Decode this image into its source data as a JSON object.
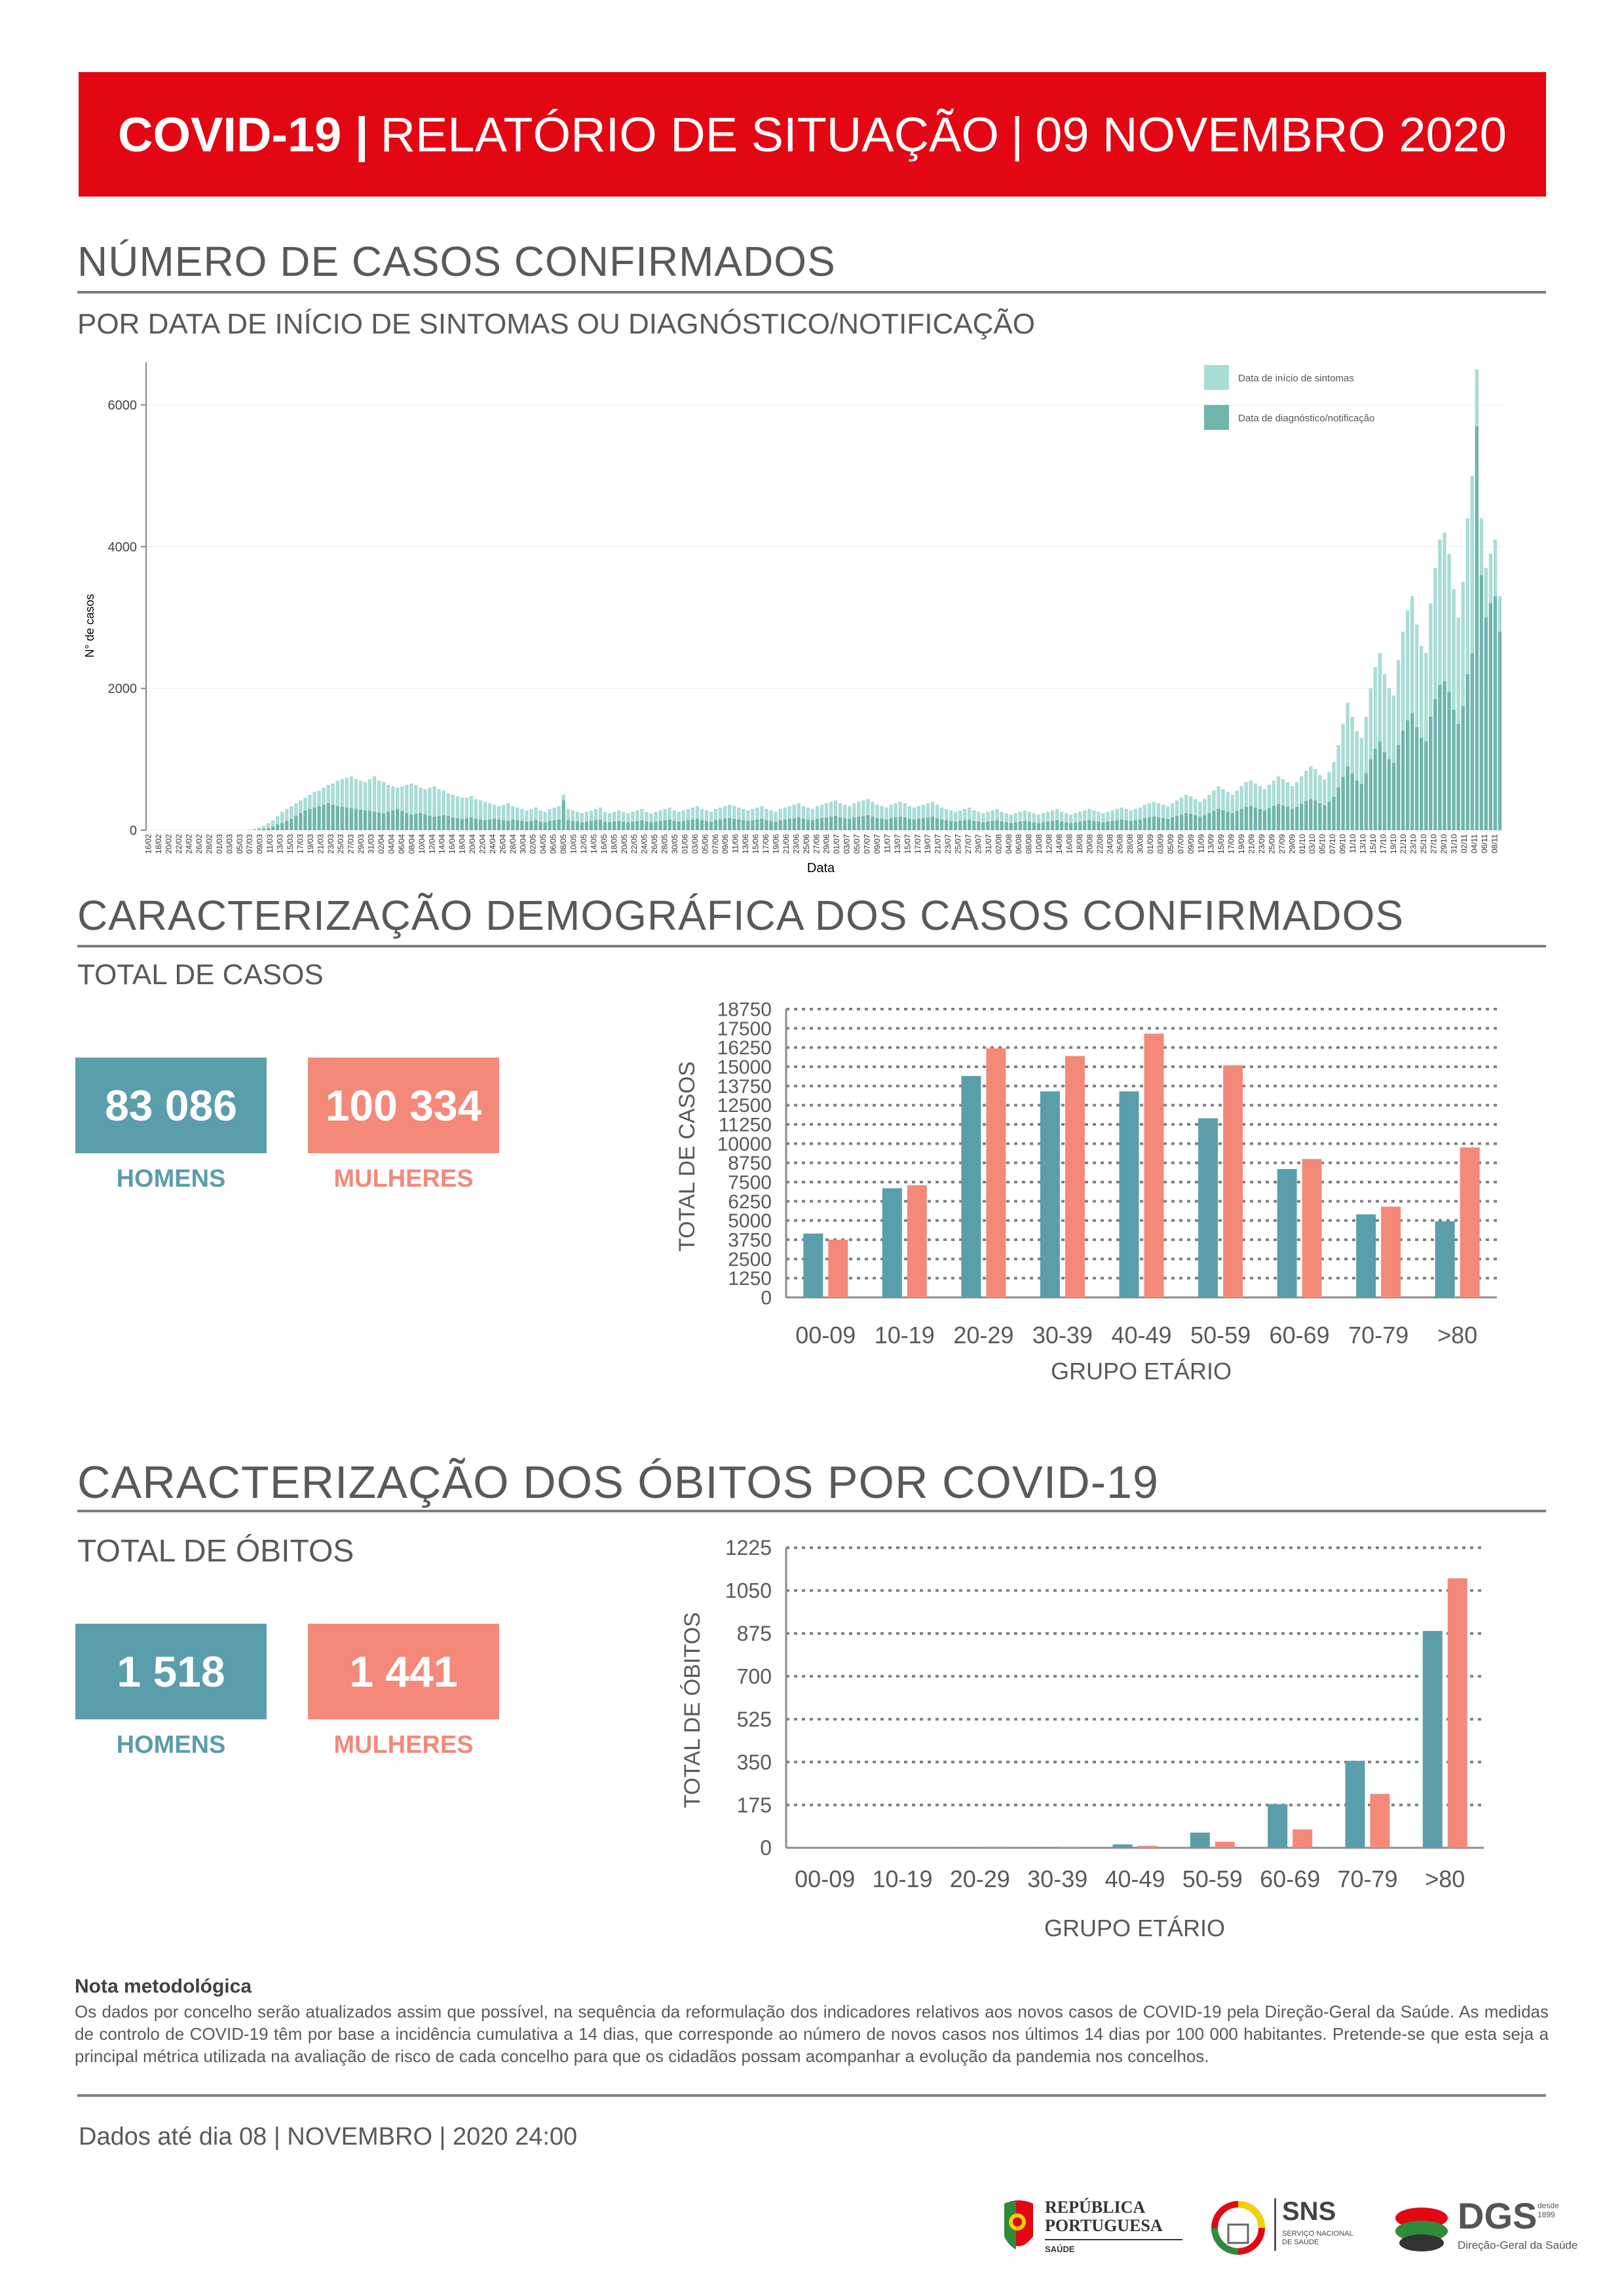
{
  "header": {
    "title_bold": "COVID-19 |",
    "title_rest": "RELATÓRIO DE SITUAÇÃO",
    "separator": "|",
    "date": "09 NOVEMBRO 2020"
  },
  "section1": {
    "title": "NÚMERO DE CASOS CONFIRMADOS",
    "subtitle": "POR DATA DE INÍCIO DE SINTOMAS OU DIAGNÓSTICO/NOTIFICAÇÃO"
  },
  "section2": {
    "title": "CARACTERIZAÇÃO DEMOGRÁFICA DOS CASOS CONFIRMADOS",
    "subtitle": "TOTAL DE CASOS",
    "men_value": "83 086",
    "men_label": "HOMENS",
    "women_value": "100 334",
    "women_label": "MULHERES"
  },
  "section3": {
    "title": "CARACTERIZAÇÃO DOS ÓBITOS POR COVID-19",
    "subtitle": "TOTAL DE ÓBITOS",
    "men_value": "1 518",
    "men_label": "HOMENS",
    "women_value": "1 441",
    "women_label": "MULHERES"
  },
  "note": {
    "title": "Nota metodológica",
    "text": "Os dados por concelho serão atualizados assim que possível, na sequência da reformulação dos indicadores relativos aos novos casos de COVID-19 pela Direção-Geral da Saúde. As medidas de controlo de COVID-19 têm por base a incidência cumulativa a 14 dias, que corresponde ao número de novos casos nos últimos 14 dias por 100 000 habitantes. Pretende-se que esta seja a principal métrica utilizada na avaliação de risco de cada concelho para que os cidadãos possam acompanhar a evolução da pandemia nos concelhos."
  },
  "footer": {
    "date_text": "Dados até dia 08 | NOVEMBRO | 2020 24:00",
    "logo1_line1": "REPÚBLICA",
    "logo1_line2": "PORTUGUESA",
    "logo1_line3": "SAÚDE",
    "logo2_main": "SNS",
    "logo2_sub": "SERVIÇO NACIONAL DE SAÚDE",
    "logo3_main": "DGS",
    "logo3_since": "desde 1899",
    "logo3_sub": "Direção-Geral da Saúde"
  },
  "colors": {
    "red": "#e30613",
    "men": "#5a9eac",
    "women": "#f4897a",
    "symptoms": "#a8ddd5",
    "notification": "#6fb5ad"
  },
  "chart_data": [
    {
      "type": "bar",
      "stacked": false,
      "xlabel": "Data",
      "ylabel": "N° de casos",
      "yticks": [
        0,
        2000,
        4000,
        6000
      ],
      "ylim": [
        0,
        6600
      ],
      "x_tick_labels": [
        "16/02",
        "18/02",
        "20/02",
        "22/02",
        "24/02",
        "26/02",
        "28/02",
        "01/03",
        "03/03",
        "05/03",
        "07/03",
        "09/03",
        "11/03",
        "13/03",
        "15/03",
        "17/03",
        "19/03",
        "21/03",
        "23/03",
        "25/03",
        "27/03",
        "29/03",
        "31/03",
        "02/04",
        "04/04",
        "06/04",
        "08/04",
        "10/04",
        "12/04",
        "14/04",
        "16/04",
        "18/04",
        "20/04",
        "22/04",
        "24/04",
        "26/04",
        "28/04",
        "30/04",
        "02/05",
        "04/05",
        "06/05",
        "08/05",
        "10/05",
        "12/05",
        "14/05",
        "16/05",
        "18/05",
        "20/05",
        "22/05",
        "24/05",
        "26/05",
        "28/05",
        "30/05",
        "01/06",
        "03/06",
        "05/06",
        "07/06",
        "09/06",
        "11/06",
        "13/06",
        "15/06",
        "17/06",
        "19/06",
        "21/06",
        "23/06",
        "25/06",
        "27/06",
        "29/06",
        "01/07",
        "03/07",
        "05/07",
        "07/07",
        "09/07",
        "11/07",
        "13/07",
        "15/07",
        "17/07",
        "19/07",
        "21/07",
        "23/07",
        "25/07",
        "27/07",
        "29/07",
        "31/07",
        "02/08",
        "04/08",
        "06/08",
        "08/08",
        "10/08",
        "12/08",
        "14/08",
        "16/08",
        "18/08",
        "20/08",
        "22/08",
        "24/08",
        "26/08",
        "28/08",
        "30/08",
        "01/09",
        "03/09",
        "05/09",
        "07/09",
        "09/09",
        "11/09",
        "13/09",
        "15/09",
        "17/09",
        "19/09",
        "21/09",
        "23/09",
        "25/09",
        "27/09",
        "29/09",
        "01/10",
        "03/10",
        "05/10",
        "07/10",
        "09/10",
        "11/10",
        "13/10",
        "15/10",
        "17/10",
        "19/10",
        "21/10",
        "23/10",
        "25/10",
        "27/10",
        "29/10",
        "31/10",
        "02/11",
        "04/11",
        "06/11",
        "08/11"
      ],
      "series": [
        {
          "name": "Data de início de sintomas",
          "color": "#a8ddd5",
          "values": [
            0,
            0,
            0,
            0,
            0,
            0,
            0,
            0,
            0,
            0,
            0,
            0,
            0,
            0,
            0,
            0,
            0,
            0,
            0,
            0,
            0,
            0,
            10,
            20,
            40,
            60,
            100,
            140,
            200,
            260,
            300,
            340,
            380,
            420,
            460,
            500,
            540,
            560,
            600,
            640,
            660,
            700,
            720,
            740,
            760,
            720,
            700,
            680,
            720,
            760,
            700,
            680,
            640,
            620,
            600,
            620,
            640,
            660,
            640,
            600,
            580,
            600,
            620,
            580,
            560,
            520,
            500,
            480,
            460,
            460,
            480,
            440,
            420,
            400,
            380,
            360,
            340,
            360,
            380,
            340,
            320,
            300,
            280,
            300,
            320,
            280,
            260,
            300,
            320,
            340,
            500,
            300,
            280,
            260,
            240,
            260,
            280,
            300,
            320,
            260,
            240,
            260,
            280,
            260,
            240,
            260,
            280,
            300,
            260,
            240,
            260,
            280,
            300,
            320,
            280,
            260,
            280,
            300,
            320,
            340,
            300,
            280,
            260,
            300,
            320,
            340,
            360,
            340,
            320,
            300,
            280,
            300,
            320,
            340,
            300,
            280,
            260,
            300,
            320,
            340,
            360,
            380,
            340,
            320,
            300,
            340,
            360,
            380,
            400,
            420,
            380,
            360,
            340,
            380,
            400,
            420,
            440,
            400,
            360,
            340,
            320,
            360,
            380,
            400,
            380,
            340,
            320,
            340,
            360,
            380,
            400,
            360,
            320,
            300,
            280,
            260,
            280,
            300,
            320,
            280,
            260,
            240,
            260,
            280,
            300,
            260,
            240,
            220,
            240,
            260,
            280,
            260,
            240,
            220,
            240,
            260,
            280,
            300,
            260,
            240,
            220,
            240,
            260,
            280,
            300,
            280,
            260,
            240,
            260,
            280,
            300,
            320,
            300,
            280,
            300,
            320,
            360,
            380,
            400,
            380,
            360,
            340,
            380,
            420,
            460,
            500,
            480,
            440,
            400,
            440,
            500,
            560,
            620,
            580,
            540,
            500,
            560,
            620,
            680,
            700,
            660,
            620,
            580,
            640,
            700,
            760,
            720,
            680,
            620,
            680,
            760,
            840,
            900,
            860,
            780,
            720,
            820,
            960,
            1200,
            1500,
            1800,
            1600,
            1400,
            1300,
            1600,
            2000,
            2300,
            2500,
            2200,
            2000,
            1900,
            2400,
            2800,
            3100,
            3300,
            2900,
            2600,
            2500,
            3200,
            3700,
            4100,
            4200,
            3900,
            3400,
            3000,
            3500,
            4400,
            5000,
            6500,
            4400,
            3700,
            3900,
            4100,
            3300
          ]
        },
        {
          "name": "Data de diagnóstico/notificação",
          "color": "#6fb5ad",
          "values": [
            0,
            0,
            0,
            0,
            0,
            0,
            0,
            0,
            0,
            0,
            0,
            0,
            0,
            0,
            0,
            0,
            0,
            0,
            0,
            0,
            0,
            0,
            0,
            5,
            10,
            20,
            30,
            50,
            80,
            100,
            130,
            160,
            200,
            240,
            280,
            300,
            320,
            340,
            360,
            380,
            360,
            340,
            330,
            320,
            310,
            300,
            290,
            280,
            270,
            260,
            250,
            240,
            260,
            280,
            300,
            270,
            240,
            220,
            230,
            240,
            220,
            200,
            190,
            200,
            210,
            200,
            180,
            170,
            160,
            170,
            180,
            160,
            150,
            140,
            150,
            160,
            150,
            140,
            130,
            150,
            140,
            130,
            120,
            130,
            140,
            120,
            110,
            130,
            140,
            150,
            420,
            140,
            130,
            120,
            110,
            120,
            130,
            140,
            150,
            120,
            110,
            120,
            130,
            120,
            110,
            120,
            130,
            140,
            120,
            110,
            120,
            130,
            140,
            150,
            130,
            120,
            130,
            140,
            150,
            160,
            140,
            130,
            120,
            140,
            150,
            160,
            170,
            160,
            150,
            140,
            130,
            140,
            150,
            160,
            140,
            130,
            120,
            140,
            150,
            160,
            170,
            180,
            160,
            150,
            140,
            160,
            170,
            180,
            190,
            200,
            180,
            170,
            160,
            180,
            190,
            200,
            210,
            190,
            170,
            160,
            150,
            170,
            180,
            190,
            180,
            160,
            150,
            160,
            170,
            180,
            190,
            170,
            150,
            140,
            130,
            120,
            130,
            140,
            150,
            130,
            120,
            110,
            120,
            130,
            140,
            120,
            110,
            100,
            110,
            120,
            130,
            120,
            110,
            100,
            110,
            120,
            130,
            140,
            120,
            110,
            100,
            110,
            120,
            130,
            140,
            130,
            120,
            110,
            120,
            130,
            140,
            150,
            140,
            130,
            140,
            150,
            170,
            180,
            190,
            180,
            170,
            160,
            180,
            200,
            220,
            240,
            230,
            210,
            190,
            210,
            240,
            270,
            300,
            280,
            260,
            240,
            270,
            300,
            330,
            340,
            320,
            300,
            280,
            310,
            340,
            370,
            350,
            330,
            300,
            330,
            370,
            410,
            440,
            420,
            380,
            350,
            400,
            470,
            600,
            750,
            900,
            800,
            700,
            650,
            800,
            1000,
            1150,
            1250,
            1100,
            1000,
            950,
            1200,
            1400,
            1550,
            1650,
            1450,
            1300,
            1250,
            1600,
            1850,
            2050,
            2100,
            1950,
            1700,
            1500,
            1750,
            2200,
            2500,
            5700,
            3600,
            3000,
            3200,
            3300,
            2800
          ]
        }
      ]
    },
    {
      "type": "bar",
      "xlabel": "GRUPO ETÁRIO",
      "ylabel": "TOTAL DE CASOS",
      "categories": [
        "00-09",
        "10-19",
        "20-29",
        "30-39",
        "40-49",
        "50-59",
        "60-69",
        "70-79",
        ">80"
      ],
      "yticks": [
        0,
        1250,
        2500,
        3750,
        5000,
        6250,
        7500,
        8750,
        10000,
        11250,
        12500,
        13750,
        15000,
        16250,
        17500,
        18750
      ],
      "ylim": [
        0,
        18750
      ],
      "series": [
        {
          "name": "HOMENS",
          "color": "#5a9eac",
          "values": [
            4150,
            7100,
            14400,
            13400,
            13400,
            11650,
            8350,
            5400,
            4950
          ]
        },
        {
          "name": "MULHERES",
          "color": "#f4897a",
          "values": [
            3750,
            7300,
            16200,
            15700,
            17150,
            15100,
            9000,
            5900,
            9750
          ]
        }
      ]
    },
    {
      "type": "bar",
      "xlabel": "GRUPO ETÁRIO",
      "ylabel": "TOTAL DE ÓBITOS",
      "categories": [
        "00-09",
        "10-19",
        "20-29",
        "30-39",
        "40-49",
        "50-59",
        "60-69",
        "70-79",
        ">80"
      ],
      "yticks": [
        0,
        175,
        350,
        525,
        700,
        875,
        1050,
        1225
      ],
      "ylim": [
        0,
        1225
      ],
      "series": [
        {
          "name": "HOMENS",
          "color": "#5a9eac",
          "values": [
            0,
            0,
            1,
            3,
            14,
            62,
            178,
            355,
            885
          ]
        },
        {
          "name": "MULHERES",
          "color": "#f4897a",
          "values": [
            0,
            0,
            1,
            2,
            8,
            25,
            75,
            220,
            1100
          ]
        }
      ]
    }
  ]
}
